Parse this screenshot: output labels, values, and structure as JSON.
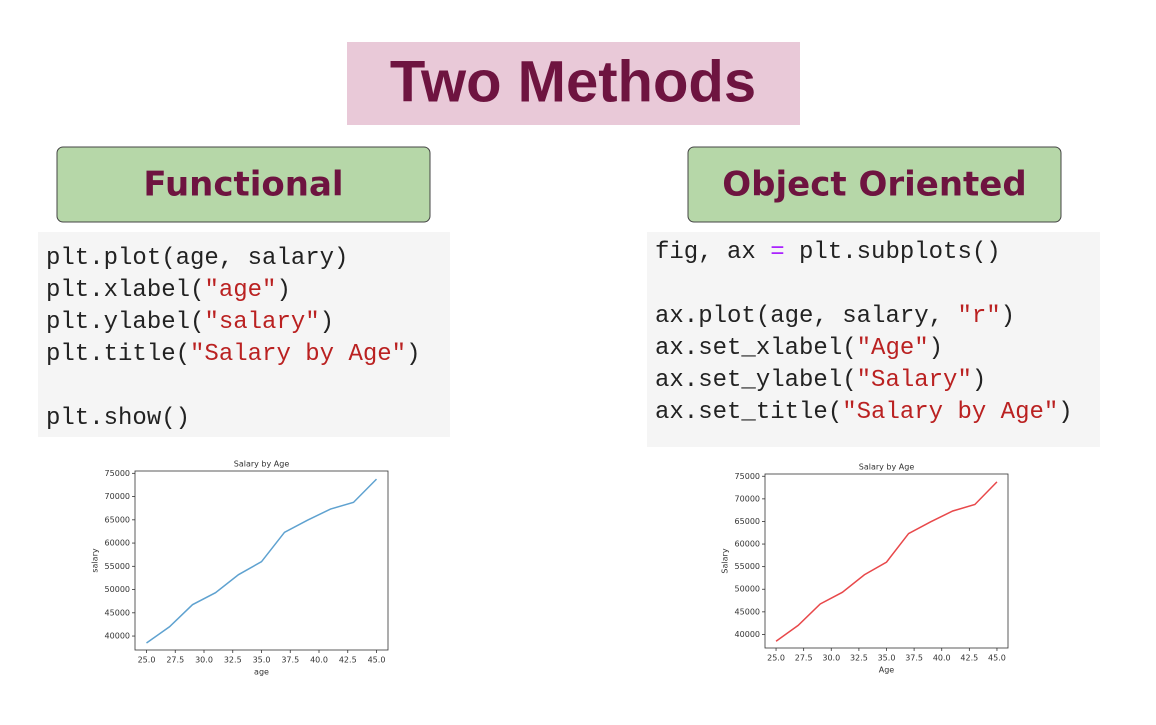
{
  "title": "Two Methods",
  "panels": [
    {
      "heading": "Functional",
      "code": [
        [
          [
            "plt.plot(age, salary)"
          ],
          [
            "plt.xlabel(",
            "\"age\"",
            ")"
          ],
          [
            "plt.ylabel(",
            "\"salary\"",
            ")"
          ],
          [
            "plt.title(",
            "\"Salary by Age\"",
            ")"
          ]
        ],
        [
          [
            "plt.show()"
          ]
        ]
      ]
    },
    {
      "heading": "Object Oriented",
      "code": [
        [
          [
            "fig, ax ",
            "=",
            " plt.subplots()"
          ]
        ],
        [
          [
            "ax.plot(age, salary, ",
            "\"r\"",
            ")"
          ],
          [
            "ax.set_xlabel(",
            "\"Age\"",
            ")"
          ],
          [
            "ax.set_ylabel(",
            "\"Salary\"",
            ")"
          ],
          [
            "ax.set_title(",
            "\"Salary by Age\"",
            ")"
          ]
        ]
      ]
    }
  ],
  "chart_data": [
    {
      "type": "line",
      "title": "Salary by Age",
      "x_label": "age",
      "y_label": "salary",
      "color": "#5fa2d0",
      "x": [
        25,
        27,
        29,
        31,
        33,
        35,
        37,
        39,
        41,
        43,
        45
      ],
      "values": [
        38496,
        42000,
        46752,
        49320,
        53200,
        56000,
        62316,
        64928,
        67317,
        68748,
        73752
      ],
      "xlim": [
        24,
        46
      ],
      "ylim": [
        37000,
        75500
      ],
      "xticks": [
        {
          "value": 25,
          "label": "25.0"
        },
        {
          "value": 27.5,
          "label": "27.5"
        },
        {
          "value": 30,
          "label": "30.0"
        },
        {
          "value": 32.5,
          "label": "32.5"
        },
        {
          "value": 35,
          "label": "35.0"
        },
        {
          "value": 37.5,
          "label": "37.5"
        },
        {
          "value": 40,
          "label": "40.0"
        },
        {
          "value": 42.5,
          "label": "42.5"
        },
        {
          "value": 45,
          "label": "45.0"
        }
      ],
      "yticks": [
        40000,
        45000,
        50000,
        55000,
        60000,
        65000,
        70000,
        75000
      ]
    },
    {
      "type": "line",
      "title": "Salary by Age",
      "x_label": "Age",
      "y_label": "Salary",
      "color": "#e8484a",
      "x": [
        25,
        27,
        29,
        31,
        33,
        35,
        37,
        39,
        41,
        43,
        45
      ],
      "values": [
        38496,
        42000,
        46752,
        49320,
        53200,
        56000,
        62316,
        64928,
        67317,
        68748,
        73752
      ],
      "xlim": [
        24,
        46
      ],
      "ylim": [
        37000,
        75500
      ],
      "xticks": [
        {
          "value": 25,
          "label": "25.0"
        },
        {
          "value": 27.5,
          "label": "27.5"
        },
        {
          "value": 30,
          "label": "30.0"
        },
        {
          "value": 32.5,
          "label": "32.5"
        },
        {
          "value": 35,
          "label": "35.0"
        },
        {
          "value": 37.5,
          "label": "37.5"
        },
        {
          "value": 40,
          "label": "40.0"
        },
        {
          "value": 42.5,
          "label": "42.5"
        },
        {
          "value": 45,
          "label": "45.0"
        }
      ],
      "yticks": [
        40000,
        45000,
        50000,
        55000,
        60000,
        65000,
        70000,
        75000
      ]
    }
  ]
}
